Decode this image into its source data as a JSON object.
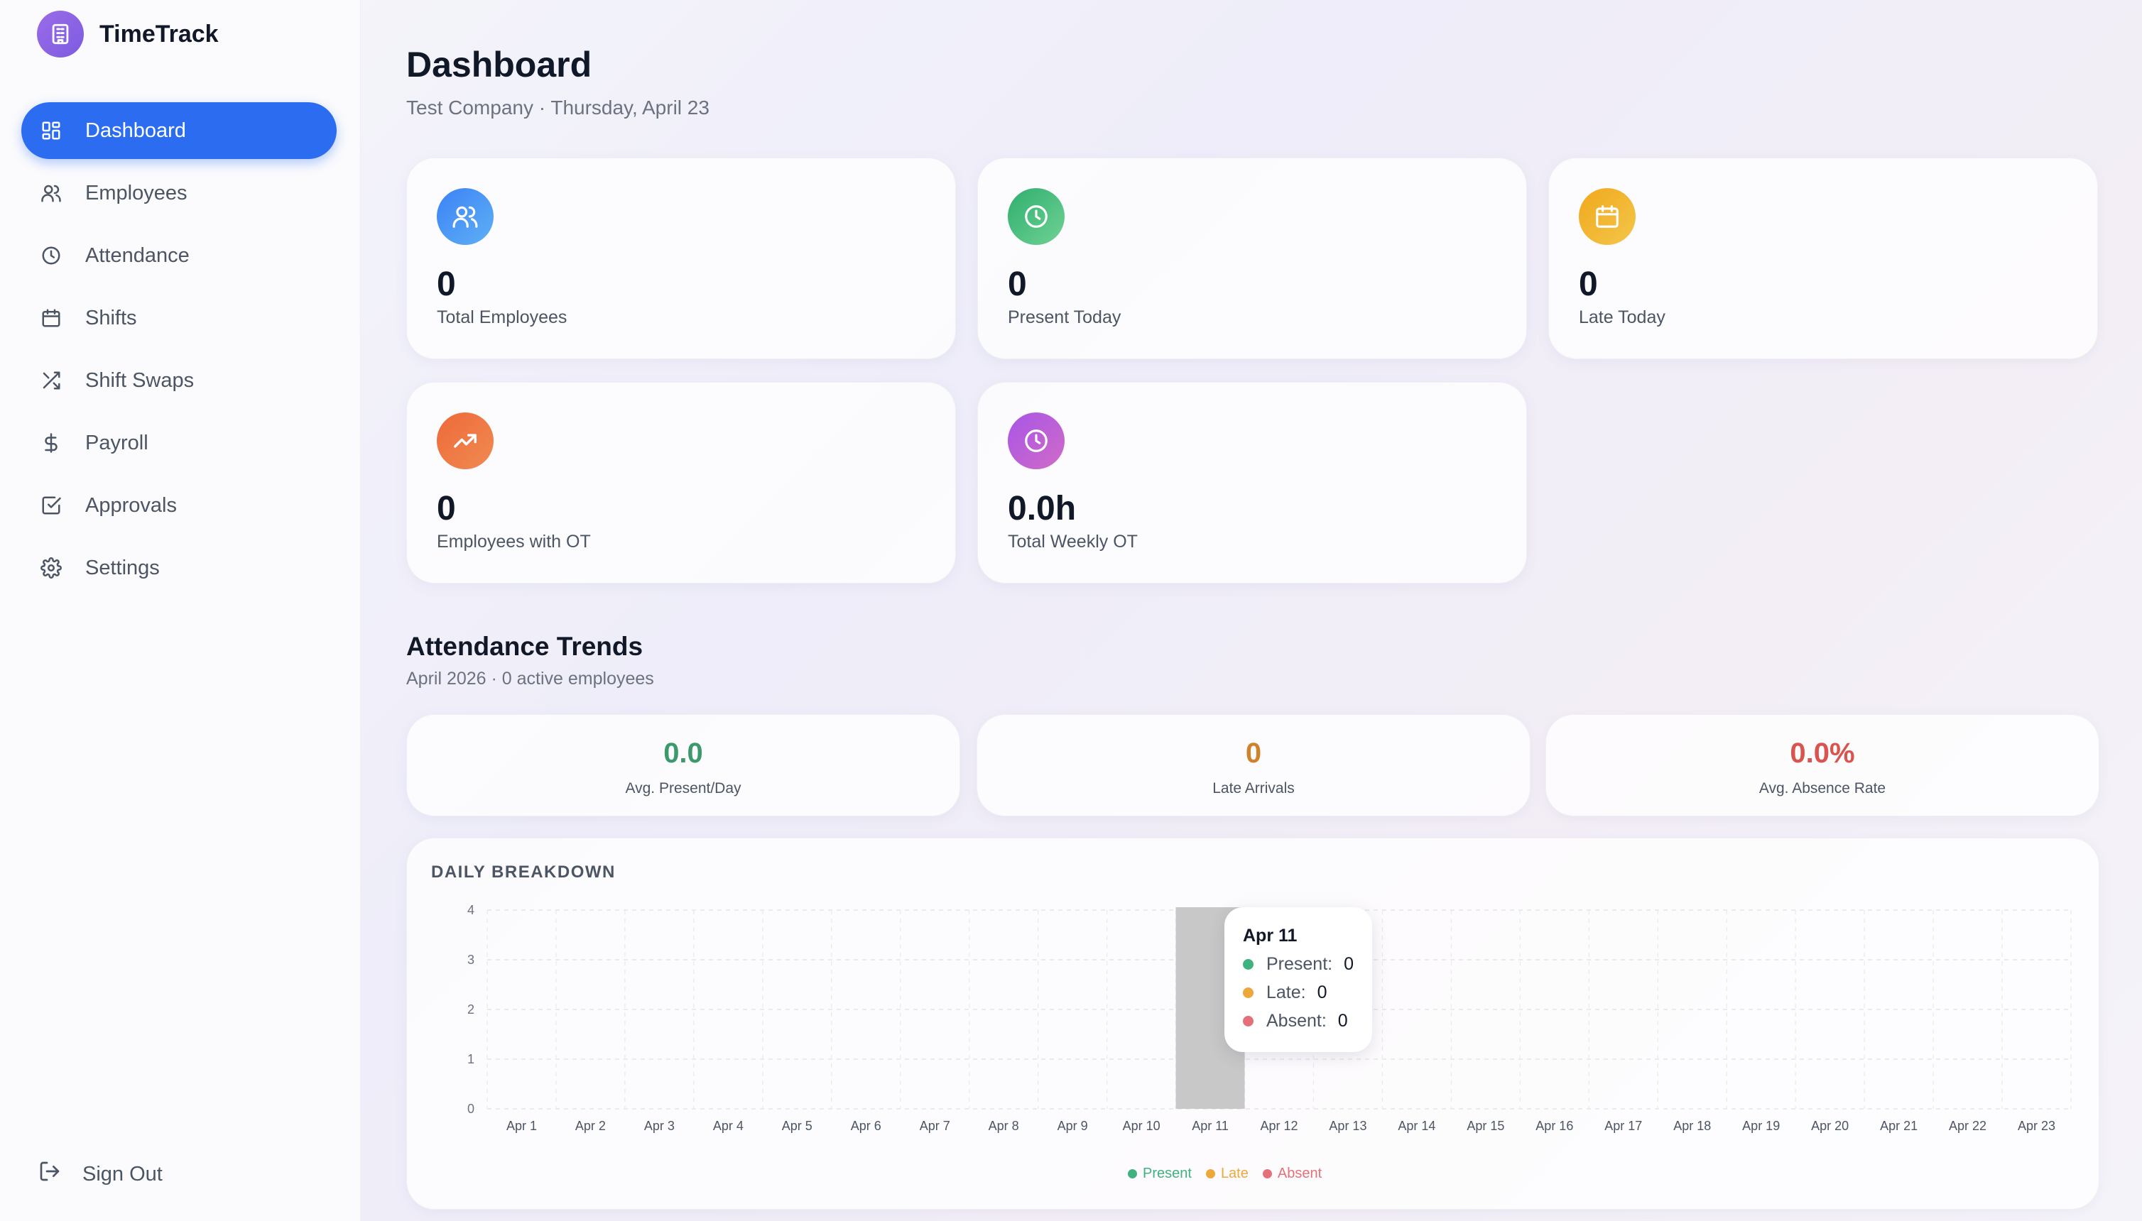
{
  "app": {
    "name": "TimeTrack"
  },
  "sidebar": {
    "items": [
      {
        "label": "Dashboard",
        "icon": "dashboard-grid-icon",
        "active": true
      },
      {
        "label": "Employees",
        "icon": "users-icon",
        "active": false
      },
      {
        "label": "Attendance",
        "icon": "clock-icon",
        "active": false
      },
      {
        "label": "Shifts",
        "icon": "calendar-icon",
        "active": false
      },
      {
        "label": "Shift Swaps",
        "icon": "shuffle-icon",
        "active": false
      },
      {
        "label": "Payroll",
        "icon": "dollar-icon",
        "active": false
      },
      {
        "label": "Approvals",
        "icon": "check-square-icon",
        "active": false
      },
      {
        "label": "Settings",
        "icon": "gear-icon",
        "active": false
      }
    ],
    "sign_out": "Sign Out"
  },
  "header": {
    "title": "Dashboard",
    "subtitle": "Test Company · Thursday, April 23"
  },
  "stats": [
    {
      "value": "0",
      "label": "Total Employees",
      "icon": "users-icon",
      "color": "#3b82f6"
    },
    {
      "value": "0",
      "label": "Present Today",
      "icon": "clock-icon",
      "color": "#34b374"
    },
    {
      "value": "0",
      "label": "Late Today",
      "icon": "calendar-icon",
      "color": "#eeaa24"
    },
    {
      "value": "0",
      "label": "Employees with OT",
      "icon": "trending-up-icon",
      "color": "#ec6c3e"
    },
    {
      "value": "0.0h",
      "label": "Total Weekly OT",
      "icon": "clock-icon",
      "color": "#b25ddc"
    }
  ],
  "trends": {
    "title": "Attendance Trends",
    "subtitle": "April 2026 · 0 active employees",
    "summary": [
      {
        "value": "0.0",
        "label": "Avg. Present/Day",
        "color": "#3c9a6a"
      },
      {
        "value": "0",
        "label": "Late Arrivals",
        "color": "#d0822a"
      },
      {
        "value": "0.0%",
        "label": "Avg. Absence Rate",
        "color": "#d9534f"
      }
    ]
  },
  "chart_data": {
    "type": "bar",
    "title": "DAILY BREAKDOWN",
    "categories": [
      "Apr 1",
      "Apr 2",
      "Apr 3",
      "Apr 4",
      "Apr 5",
      "Apr 6",
      "Apr 7",
      "Apr 8",
      "Apr 9",
      "Apr 10",
      "Apr 11",
      "Apr 12",
      "Apr 13",
      "Apr 14",
      "Apr 15",
      "Apr 16",
      "Apr 17",
      "Apr 18",
      "Apr 19",
      "Apr 20",
      "Apr 21",
      "Apr 22",
      "Apr 23"
    ],
    "series": [
      {
        "name": "Present",
        "color": "#3fb27f",
        "values": [
          0,
          0,
          0,
          0,
          0,
          0,
          0,
          0,
          0,
          0,
          0,
          0,
          0,
          0,
          0,
          0,
          0,
          0,
          0,
          0,
          0,
          0,
          0
        ]
      },
      {
        "name": "Late",
        "color": "#eca83a",
        "values": [
          0,
          0,
          0,
          0,
          0,
          0,
          0,
          0,
          0,
          0,
          0,
          0,
          0,
          0,
          0,
          0,
          0,
          0,
          0,
          0,
          0,
          0,
          0
        ]
      },
      {
        "name": "Absent",
        "color": "#e4707a",
        "values": [
          0,
          0,
          0,
          0,
          0,
          0,
          0,
          0,
          0,
          0,
          0,
          0,
          0,
          0,
          0,
          0,
          0,
          0,
          0,
          0,
          0,
          0,
          0
        ]
      }
    ],
    "yticks": [
      "0",
      "1",
      "2",
      "3",
      "4"
    ],
    "ylim": [
      0,
      4
    ],
    "grid": true,
    "legend": "bottom-center",
    "highlight_category": "Apr 11"
  },
  "tooltip": {
    "title": "Apr 11",
    "rows": [
      {
        "label": "Present:",
        "value": "0",
        "color": "#3fb27f"
      },
      {
        "label": "Late:",
        "value": "0",
        "color": "#eca83a"
      },
      {
        "label": "Absent:",
        "value": "0",
        "color": "#e4707a"
      }
    ]
  }
}
